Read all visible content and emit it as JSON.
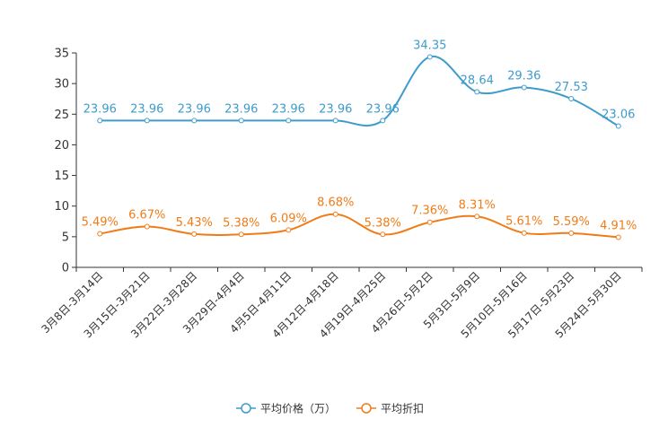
{
  "chart_data": {
    "type": "line",
    "title": "",
    "xlabel": "",
    "ylabel": "",
    "ylim": [
      0,
      35
    ],
    "yticks": [
      "0",
      "5",
      "10",
      "15",
      "20",
      "25",
      "30",
      "35"
    ],
    "categories": [
      "3月8日-3月14日",
      "3月15日-3月21日",
      "3月22日-3月28日",
      "3月29日-4月4日",
      "4月5日-4月11日",
      "4月12日-4月18日",
      "4月19日-4月25日",
      "4月26日-5月2日",
      "5月3日-5月9日",
      "5月10日-5月16日",
      "5月17日-5月23日",
      "5月24日-5月30日"
    ],
    "series": [
      {
        "name": "平均价格（万）",
        "color": "#3d9ccc",
        "values": [
          23.96,
          23.96,
          23.96,
          23.96,
          23.96,
          23.96,
          23.96,
          34.35,
          28.64,
          29.36,
          27.53,
          23.06
        ],
        "labels": [
          "23.96",
          "23.96",
          "23.96",
          "23.96",
          "23.96",
          "23.96",
          "23.96",
          "34.35",
          "28.64",
          "29.36",
          "27.53",
          "23.06"
        ]
      },
      {
        "name": "平均折扣",
        "color": "#f07c18",
        "values": [
          5.49,
          6.67,
          5.43,
          5.38,
          6.09,
          8.68,
          5.38,
          7.36,
          8.31,
          5.61,
          5.59,
          4.91
        ],
        "labels": [
          "5.49%",
          "6.67%",
          "5.43%",
          "5.38%",
          "6.09%",
          "8.68%",
          "5.38%",
          "7.36%",
          "8.31%",
          "5.61%",
          "5.59%",
          "4.91%"
        ]
      }
    ],
    "legend_position": "bottom-center",
    "grid": false
  }
}
